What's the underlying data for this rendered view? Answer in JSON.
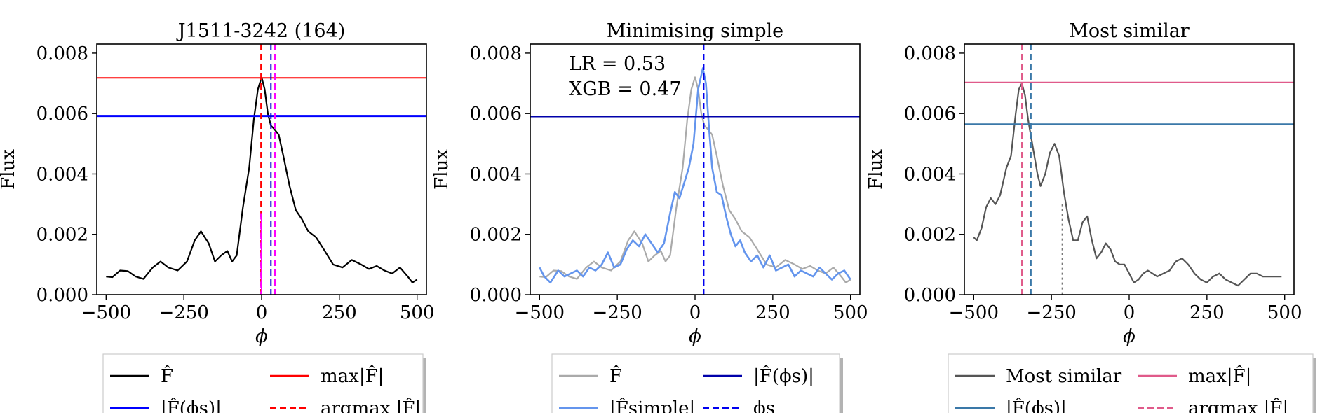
{
  "chart_data": [
    {
      "type": "line",
      "title": "J1511-3242 (164)",
      "xlabel": "ϕ",
      "ylabel": "Flux",
      "xlim": [
        -530,
        530
      ],
      "ylim": [
        0.0,
        0.0083
      ],
      "xticks": [
        -500,
        -250,
        0,
        250,
        500
      ],
      "xtick_labels": [
        "−500",
        "−250",
        "0",
        "250",
        "500"
      ],
      "yticks": [
        0.0,
        0.002,
        0.004,
        0.006,
        0.008
      ],
      "ytick_labels": [
        "0.000",
        "0.002",
        "0.004",
        "0.006",
        "0.008"
      ],
      "series": [
        {
          "name": "F̂",
          "color": "#000000",
          "style": "solid",
          "x": [
            -500,
            -480,
            -455,
            -430,
            -405,
            -380,
            -350,
            -325,
            -300,
            -270,
            -240,
            -215,
            -195,
            -170,
            -150,
            -130,
            -110,
            -95,
            -80,
            -60,
            -40,
            -25,
            -12,
            0,
            10,
            20,
            30,
            40,
            55,
            70,
            90,
            110,
            130,
            150,
            175,
            200,
            230,
            260,
            290,
            320,
            345,
            370,
            395,
            420,
            445,
            470,
            485,
            500
          ],
          "y": [
            0.0006,
            0.00058,
            0.0008,
            0.00078,
            0.0006,
            0.00052,
            0.0009,
            0.0011,
            0.0009,
            0.0008,
            0.0011,
            0.0018,
            0.0021,
            0.0017,
            0.0011,
            0.0013,
            0.00145,
            0.0011,
            0.0013,
            0.0029,
            0.0042,
            0.0058,
            0.0068,
            0.0072,
            0.0068,
            0.006,
            0.0056,
            0.0055,
            0.0053,
            0.0046,
            0.0036,
            0.0028,
            0.0025,
            0.0021,
            0.0019,
            0.0015,
            0.001,
            0.0009,
            0.00115,
            0.001,
            0.00085,
            0.00095,
            0.0008,
            0.0007,
            0.0009,
            0.0006,
            0.0004,
            0.0005
          ]
        }
      ],
      "hlines": [
        {
          "name": "max|F̂|",
          "y": 0.00718,
          "color": "#ff0000",
          "style": "solid"
        },
        {
          "name": "|F̂(ϕs)|",
          "y": 0.00592,
          "color": "#0000ff",
          "style": "solid"
        }
      ],
      "vlines": [
        {
          "name": "argmax |F̂|",
          "x": -2,
          "color": "#ff0000",
          "style": "dashed"
        },
        {
          "name": "ϕs",
          "x": 30,
          "color": "#0000cc",
          "style": "dashed"
        },
        {
          "x": 42,
          "color": "#ff00ff",
          "style": "dashed"
        },
        {
          "x": 44,
          "color": "#ff00ff",
          "style": "dashed"
        },
        {
          "x": -2,
          "y_max": 0.0027,
          "color": "#ff00ff",
          "style": "dashed"
        },
        {
          "x": 0,
          "y_max": 0.0025,
          "color": "#ff00ff",
          "style": "dashed"
        }
      ],
      "legend": {
        "placement": "below",
        "entries": [
          {
            "label": "F̂",
            "color": "#000000",
            "style": "solid"
          },
          {
            "label": "max|F̂|",
            "color": "#ff0000",
            "style": "solid"
          },
          {
            "label": "|F̂(ϕs)|",
            "color": "#0000ff",
            "style": "solid"
          },
          {
            "label": "argmax |F̂|",
            "color": "#ff0000",
            "style": "dashed"
          }
        ]
      }
    },
    {
      "type": "line",
      "title": "Minimising simple",
      "xlabel": "ϕ",
      "ylabel": "Flux",
      "xlim": [
        -530,
        530
      ],
      "ylim": [
        0.0,
        0.0083
      ],
      "xticks": [
        -500,
        -250,
        0,
        250,
        500
      ],
      "xtick_labels": [
        "−500",
        "−250",
        "0",
        "250",
        "500"
      ],
      "yticks": [
        0.0,
        0.002,
        0.004,
        0.006,
        0.008
      ],
      "ytick_labels": [
        "0.000",
        "0.002",
        "0.004",
        "0.006",
        "0.008"
      ],
      "annotations": [
        "LR = 0.53",
        "XGB = 0.47"
      ],
      "series": [
        {
          "name": "F̂",
          "color": "#aaaaaa",
          "style": "solid",
          "x": [
            -500,
            -480,
            -455,
            -430,
            -405,
            -380,
            -350,
            -325,
            -300,
            -270,
            -240,
            -215,
            -195,
            -170,
            -150,
            -130,
            -110,
            -95,
            -80,
            -60,
            -40,
            -25,
            -12,
            0,
            10,
            20,
            30,
            40,
            55,
            70,
            90,
            110,
            130,
            150,
            175,
            200,
            230,
            260,
            290,
            320,
            345,
            370,
            395,
            420,
            445,
            470,
            485,
            500
          ],
          "y": [
            0.0006,
            0.00058,
            0.0008,
            0.00078,
            0.0006,
            0.00052,
            0.0009,
            0.0011,
            0.0009,
            0.0008,
            0.0011,
            0.0018,
            0.0021,
            0.0017,
            0.0011,
            0.0013,
            0.00145,
            0.0011,
            0.0013,
            0.0029,
            0.0042,
            0.0058,
            0.0068,
            0.0072,
            0.0068,
            0.006,
            0.0056,
            0.0055,
            0.0053,
            0.0046,
            0.0036,
            0.0028,
            0.0025,
            0.0021,
            0.0019,
            0.0015,
            0.001,
            0.0009,
            0.00115,
            0.001,
            0.00085,
            0.00095,
            0.0008,
            0.0007,
            0.0009,
            0.0006,
            0.0004,
            0.0005
          ]
        },
        {
          "name": "|F̂simple|",
          "color": "#6495ed",
          "style": "solid",
          "x": [
            -500,
            -485,
            -465,
            -440,
            -420,
            -400,
            -380,
            -360,
            -340,
            -320,
            -300,
            -280,
            -260,
            -240,
            -220,
            -200,
            -180,
            -160,
            -140,
            -120,
            -100,
            -80,
            -65,
            -50,
            -35,
            -20,
            -5,
            10,
            25,
            35,
            45,
            55,
            70,
            85,
            100,
            115,
            130,
            145,
            160,
            180,
            200,
            220,
            240,
            260,
            280,
            300,
            320,
            340,
            360,
            380,
            400,
            420,
            440,
            460,
            480,
            500
          ],
          "y": [
            0.0009,
            0.0006,
            0.0004,
            0.0008,
            0.0006,
            0.0007,
            0.0008,
            0.0006,
            0.0009,
            0.0008,
            0.001,
            0.0014,
            0.0009,
            0.001,
            0.0015,
            0.0018,
            0.0016,
            0.002,
            0.0017,
            0.0014,
            0.0017,
            0.0027,
            0.0034,
            0.0032,
            0.0037,
            0.0042,
            0.005,
            0.0068,
            0.0075,
            0.007,
            0.0055,
            0.0042,
            0.0034,
            0.0033,
            0.0026,
            0.002,
            0.0016,
            0.0018,
            0.0014,
            0.0011,
            0.0013,
            0.0009,
            0.0013,
            0.0008,
            0.0009,
            0.001,
            0.0006,
            0.0008,
            0.0007,
            0.0006,
            0.0009,
            0.0007,
            0.0005,
            0.0007,
            0.0008,
            0.0005
          ]
        }
      ],
      "hlines": [
        {
          "name": "|F̂(ϕs)|",
          "y": 0.0059,
          "color": "#0000aa",
          "style": "solid"
        }
      ],
      "vlines": [
        {
          "name": "ϕs",
          "x": 28,
          "color": "#0000ee",
          "style": "dashed"
        }
      ],
      "legend": {
        "placement": "below",
        "entries": [
          {
            "label": "F̂",
            "color": "#aaaaaa",
            "style": "solid"
          },
          {
            "label": "|F̂(ϕs)|",
            "color": "#0000aa",
            "style": "solid"
          },
          {
            "label": "|F̂simple|",
            "color": "#6495ed",
            "style": "solid"
          },
          {
            "label": "ϕs",
            "color": "#0000ee",
            "style": "dashed"
          }
        ]
      }
    },
    {
      "type": "line",
      "title": "Most similar",
      "xlabel": "ϕ",
      "ylabel": "Flux",
      "xlim": [
        -530,
        530
      ],
      "ylim": [
        0.0,
        0.0083
      ],
      "xticks": [
        -500,
        -250,
        0,
        250,
        500
      ],
      "xtick_labels": [
        "−500",
        "−250",
        "0",
        "250",
        "500"
      ],
      "yticks": [
        0.0,
        0.002,
        0.004,
        0.006,
        0.008
      ],
      "ytick_labels": [
        "0.000",
        "0.002",
        "0.004",
        "0.006",
        "0.008"
      ],
      "series": [
        {
          "name": "Most similar",
          "color": "#555555",
          "style": "solid",
          "x": [
            -500,
            -490,
            -475,
            -460,
            -445,
            -430,
            -415,
            -395,
            -380,
            -365,
            -355,
            -345,
            -335,
            -325,
            -315,
            -305,
            -295,
            -285,
            -270,
            -255,
            -240,
            -225,
            -210,
            -195,
            -180,
            -165,
            -150,
            -135,
            -120,
            -105,
            -90,
            -75,
            -60,
            -45,
            -30,
            -15,
            0,
            15,
            30,
            45,
            60,
            75,
            90,
            110,
            130,
            150,
            170,
            190,
            210,
            230,
            250,
            270,
            290,
            310,
            330,
            350,
            370,
            390,
            410,
            430,
            450,
            470,
            490
          ],
          "y": [
            0.0019,
            0.0018,
            0.0022,
            0.0029,
            0.0032,
            0.003,
            0.0033,
            0.0042,
            0.0046,
            0.006,
            0.0068,
            0.007,
            0.0066,
            0.0058,
            0.0052,
            0.0046,
            0.004,
            0.0036,
            0.004,
            0.0047,
            0.005,
            0.0046,
            0.0034,
            0.0025,
            0.0018,
            0.0018,
            0.0024,
            0.0026,
            0.0018,
            0.0012,
            0.0014,
            0.0017,
            0.0015,
            0.0011,
            0.001,
            0.001,
            0.0007,
            0.0004,
            0.0005,
            0.0007,
            0.0008,
            0.0007,
            0.0006,
            0.0007,
            0.0008,
            0.0011,
            0.0012,
            0.001,
            0.0007,
            0.0005,
            0.0004,
            0.0006,
            0.0007,
            0.0005,
            0.0004,
            0.0003,
            0.0005,
            0.0007,
            0.0007,
            0.0006,
            0.0006,
            0.0006,
            0.0006
          ]
        }
      ],
      "hlines": [
        {
          "name": "max|F̂|",
          "y": 0.00703,
          "color": "#e05a8a",
          "style": "solid"
        },
        {
          "name": "|F̂(ϕs)|",
          "y": 0.00565,
          "color": "#3a78a8",
          "style": "solid"
        }
      ],
      "vlines": [
        {
          "name": "argmax |F̂|",
          "x": -345,
          "color": "#e05a8a",
          "style": "dashed"
        },
        {
          "x": -316,
          "color": "#3a78a8",
          "style": "dashed"
        },
        {
          "x": -215,
          "y_max": 0.003,
          "color": "#777777",
          "style": "dotted"
        }
      ],
      "legend": {
        "placement": "below",
        "entries": [
          {
            "label": "Most similar",
            "color": "#555555",
            "style": "solid"
          },
          {
            "label": "max|F̂|",
            "color": "#e05a8a",
            "style": "solid"
          },
          {
            "label": "|F̂(ϕs)|",
            "color": "#3a78a8",
            "style": "solid"
          },
          {
            "label": "argmax |F̂|",
            "color": "#e05a8a",
            "style": "dashed"
          }
        ]
      }
    }
  ]
}
